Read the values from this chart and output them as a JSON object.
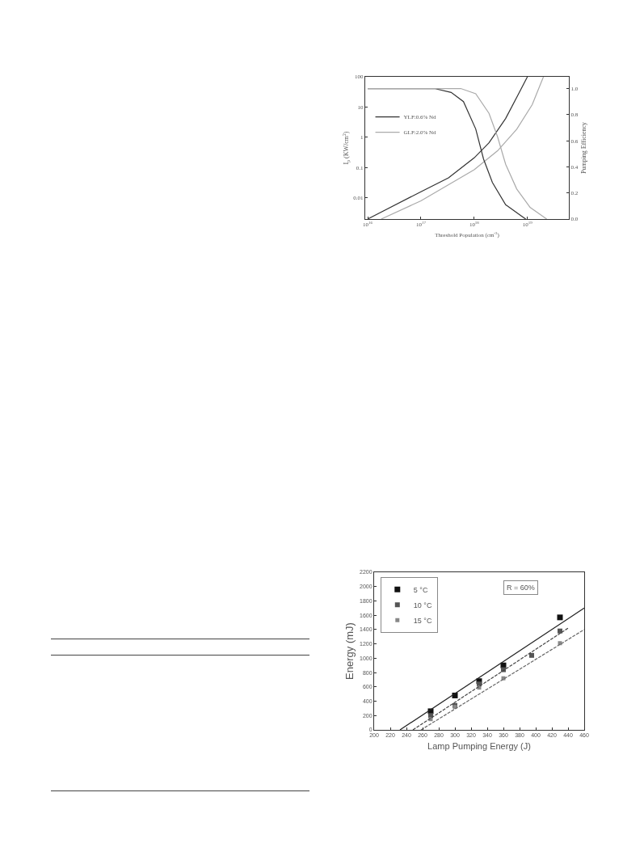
{
  "chart_data": [
    {
      "type": "line",
      "xlabel": "Threshold Population (cm$^{-3}$)",
      "ylabel": "I$_{p}$ (KW/cm$^{2}$)",
      "y2label": "Pumping Efficiency",
      "log": "xy",
      "legend": "top left",
      "xlim": [
        9000000000000000.0,
        6e+19
      ],
      "xticks": [
        {
          "value": 1e+16,
          "label": "10$^{16}$"
        },
        {
          "value": 1e+17,
          "label": "10$^{17}$"
        },
        {
          "value": 1e+18,
          "label": "10$^{18}$"
        },
        {
          "value": 1e+19,
          "label": "10$^{19}$"
        }
      ],
      "ylim": [
        0.002,
        100
      ],
      "yticks": [
        0.01,
        0.1,
        1,
        10,
        100
      ],
      "y2lim": [
        0,
        1.09
      ],
      "y2ticks": [
        {
          "value": 0,
          "label": "0.0"
        },
        0.2,
        0.4,
        0.6,
        0.8,
        {
          "value": 1,
          "label": "1.0"
        }
      ],
      "series": [
        {
          "name": "YLF:0.6% Nd",
          "color": "#333333",
          "x": [
            1e+16,
            1e+17,
            3.3e+17,
            1e+18,
            1.9e+18,
            3.9e+18,
            6.8e+18,
            1e+19
          ],
          "values": [
            0.002,
            0.016,
            0.046,
            0.21,
            0.66,
            4.2,
            27,
            100
          ]
        },
        {
          "name": "GLF:2.0% Nd",
          "color": "#aaaaaa",
          "x": [
            1.8e+16,
            1e+17,
            1e+18,
            2.75e+18,
            6.3e+18,
            1.23e+19,
            2e+19
          ],
          "values": [
            0.002,
            0.008,
            0.085,
            0.36,
            1.85,
            12,
            100
          ]
        },
        {
          "color": "#333333",
          "axis": "y2",
          "x": [
            1e+16,
            1.8e+17,
            3.7e+17,
            6.3e+17,
            1.07e+18,
            1.5e+18,
            2.2e+18,
            3.9e+18,
            7.9e+18,
            9.3e+18
          ],
          "values": [
            1,
            1,
            0.97,
            0.9,
            0.69,
            0.46,
            0.28,
            0.11,
            0.02,
            0
          ]
        },
        {
          "color": "#aaaaaa",
          "axis": "y2",
          "x": [
            1e+16,
            5.6e+17,
            1.07e+18,
            1.9e+18,
            2.75e+18,
            3.9e+18,
            6.3e+18,
            1.12e+19,
            2.3e+19
          ],
          "values": [
            1,
            1,
            0.96,
            0.81,
            0.63,
            0.42,
            0.23,
            0.09,
            0
          ]
        }
      ]
    },
    {
      "type": "scatter",
      "xlabel": "Lamp Pumping Energy (J)",
      "ylabel": "Energy (mJ)",
      "legend": "top left",
      "marker": "square",
      "xlim": [
        200,
        460
      ],
      "xticks": [
        200,
        220,
        240,
        260,
        280,
        300,
        320,
        340,
        360,
        380,
        400,
        420,
        440,
        460
      ],
      "ylim": [
        0,
        2200
      ],
      "yticks": [
        0,
        200,
        400,
        600,
        800,
        1000,
        1200,
        1400,
        1600,
        1800,
        2000,
        2200
      ],
      "annotations": [
        "R = 60%"
      ],
      "series": [
        {
          "name": "5 °C",
          "color": "#111111",
          "x": [
            270,
            300,
            330,
            360,
            430
          ],
          "values": [
            260,
            480,
            680,
            900,
            1570
          ]
        },
        {
          "name": "10 °C",
          "color": "#555555",
          "x": [
            270,
            300,
            330,
            360,
            395,
            430
          ],
          "values": [
            200,
            340,
            640,
            840,
            1040,
            1380
          ]
        },
        {
          "name": "15 °C",
          "color": "#888888",
          "x": [
            270,
            300,
            330,
            360,
            430
          ],
          "values": [
            150,
            320,
            590,
            720,
            1210
          ]
        },
        {
          "type": "line",
          "marker": "none",
          "color": "#222222",
          "line_style": "solid",
          "x": [
            232,
            460
          ],
          "values": [
            0,
            1700
          ]
        },
        {
          "type": "line",
          "marker": "none",
          "color": "#444444",
          "line_style": "dashed",
          "x": [
            248,
            440
          ],
          "values": [
            0,
            1420
          ]
        },
        {
          "type": "line",
          "marker": "none",
          "color": "#666666",
          "line_style": "dashed",
          "x": [
            258,
            460
          ],
          "values": [
            0,
            1400
          ]
        }
      ]
    }
  ]
}
